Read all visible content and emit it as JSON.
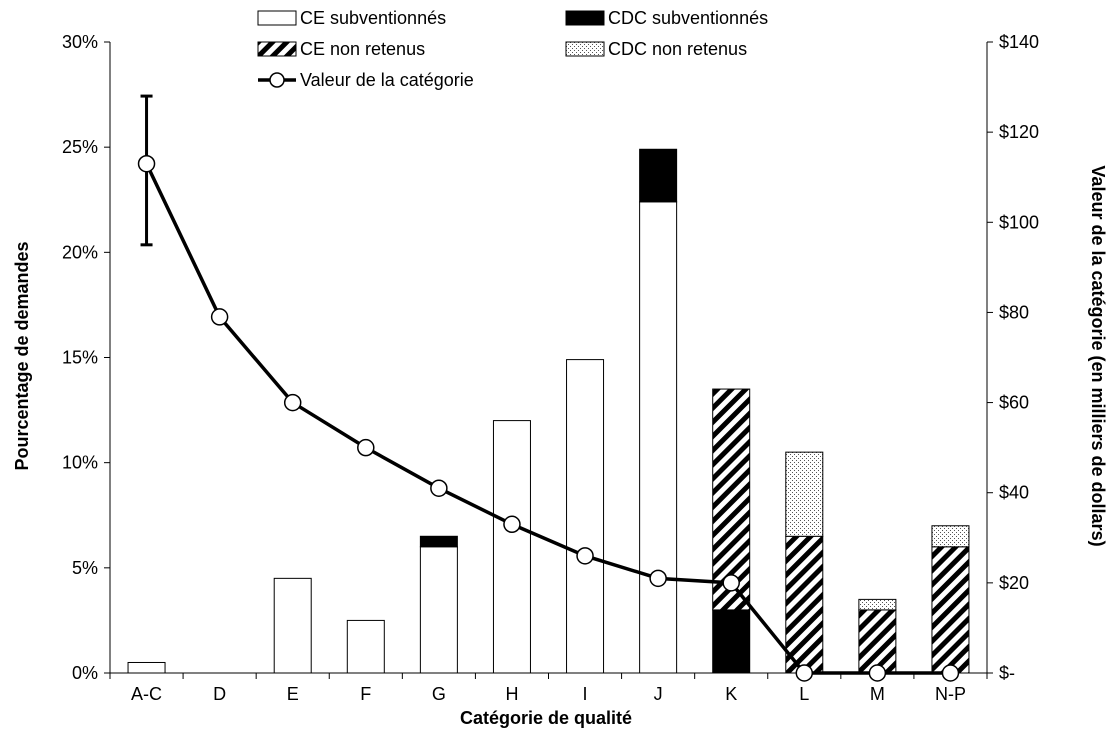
{
  "chart_data": {
    "type": "bar",
    "categories": [
      "A-C",
      "D",
      "E",
      "F",
      "G",
      "H",
      "I",
      "J",
      "K",
      "L",
      "M",
      "N-P"
    ],
    "series": [
      {
        "name": "CE subventionnés",
        "axis": "left",
        "style": "white",
        "values": [
          0.5,
          0,
          4.5,
          2.5,
          6.0,
          12.0,
          14.9,
          22.4,
          0,
          0,
          0,
          0
        ]
      },
      {
        "name": "CDC subventionnés",
        "axis": "left",
        "style": "black",
        "values": [
          0,
          0,
          0,
          0,
          0.5,
          0,
          0,
          2.5,
          3.0,
          0,
          0,
          0
        ]
      },
      {
        "name": "CE non retenus",
        "axis": "left",
        "style": "hatch",
        "values": [
          0,
          0,
          0,
          0,
          0,
          0,
          0,
          0,
          10.5,
          6.5,
          3.0,
          6.0
        ]
      },
      {
        "name": "CDC non retenus",
        "axis": "left",
        "style": "dots",
        "values": [
          0,
          0,
          0,
          0,
          0,
          0,
          0,
          0,
          0,
          4.0,
          0.5,
          1.0
        ]
      },
      {
        "name": "Valeur de la catégorie",
        "axis": "right",
        "type": "line",
        "values": [
          113,
          79,
          60,
          50,
          41,
          33,
          26,
          21,
          20,
          0,
          0,
          0
        ],
        "error_bar": {
          "category": "A-C",
          "low": 95,
          "high": 128
        }
      }
    ],
    "xlabel": "Catégorie de qualité",
    "ylabel": "Pourcentage de demandes",
    "y2label": "Valeur de la catégorie (en milliers de dollars)",
    "ylim": [
      0,
      30
    ],
    "y2lim": [
      0,
      140
    ],
    "yticks": [
      "0%",
      "5%",
      "10%",
      "15%",
      "20%",
      "25%",
      "30%"
    ],
    "y2ticks": [
      "$-",
      "$20",
      "$40",
      "$60",
      "$80",
      "$100",
      "$120",
      "$140"
    ],
    "grid": false,
    "legend_position": "top"
  }
}
